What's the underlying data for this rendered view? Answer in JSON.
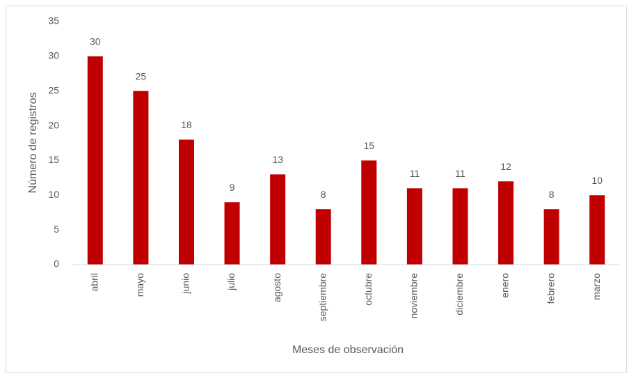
{
  "chart_data": {
    "type": "bar",
    "categories": [
      "abril",
      "mayo",
      "junio",
      "julio",
      "agosto",
      "septiembre",
      "octubre",
      "noviembre",
      "diciembre",
      "enero",
      "febrero",
      "marzo"
    ],
    "values": [
      30,
      25,
      18,
      9,
      13,
      8,
      15,
      11,
      11,
      12,
      8,
      10
    ],
    "color": "#c00000",
    "x_label": "Meses de observación",
    "y_label": "Número de registros",
    "ylim": [
      0,
      35
    ],
    "yticks": [
      0,
      5,
      10,
      15,
      20,
      25,
      30,
      35
    ],
    "grid": false,
    "data_labels": true
  }
}
